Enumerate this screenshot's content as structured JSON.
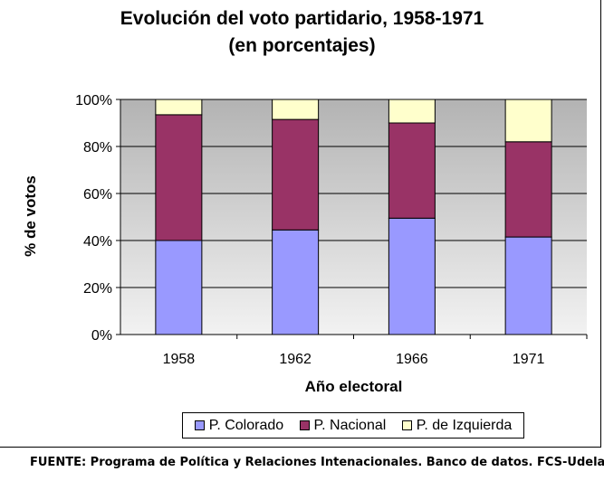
{
  "chart_data": {
    "type": "bar",
    "stacked": true,
    "title": "Evolución del voto partidario, 1958-1971",
    "subtitle": "(en porcentajes)",
    "xlabel": "Año electoral",
    "ylabel": "% de votos",
    "categories": [
      "1958",
      "1962",
      "1966",
      "1971"
    ],
    "series": [
      {
        "name": "P. Colorado",
        "color": "#9999ff",
        "values": [
          40,
          44.5,
          49.5,
          41.5
        ]
      },
      {
        "name": "P. Nacional",
        "color": "#993366",
        "values": [
          53.5,
          47,
          40.5,
          40.5
        ]
      },
      {
        "name": "P. de Izquierda",
        "color": "#ffffcc",
        "values": [
          6.5,
          8.5,
          10,
          18
        ]
      }
    ],
    "ylim": [
      0,
      100
    ],
    "yticks": [
      0,
      20,
      40,
      60,
      80,
      100
    ],
    "ytick_labels": [
      "0%",
      "20%",
      "40%",
      "60%",
      "80%",
      "100%"
    ],
    "grid": true,
    "legend_position": "bottom"
  },
  "source_note": "FUENTE: Programa de Política y Relaciones Intenacionales. Banco de datos. FCS-UdelaR"
}
